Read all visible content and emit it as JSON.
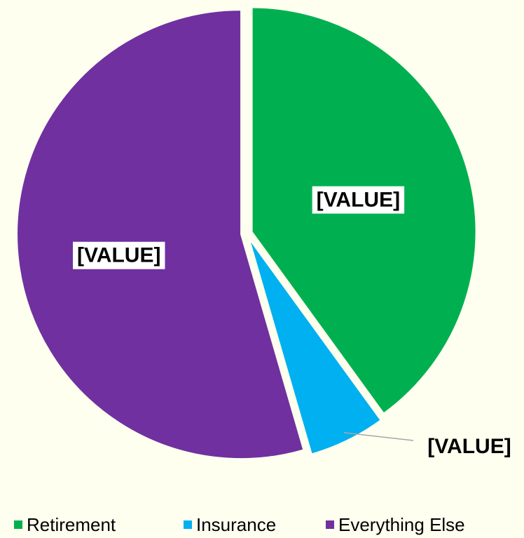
{
  "chart_data": {
    "type": "pie",
    "categories": [
      "Retirement",
      "Insurance",
      "Everything Else"
    ],
    "values": [
      40,
      5.5,
      54.5
    ],
    "value_labels": [
      "[VALUE]",
      "[VALUE]",
      "[VALUE]"
    ],
    "colors": [
      "#00b050",
      "#00b0f0",
      "#7030a0"
    ],
    "legend": "bottom"
  }
}
